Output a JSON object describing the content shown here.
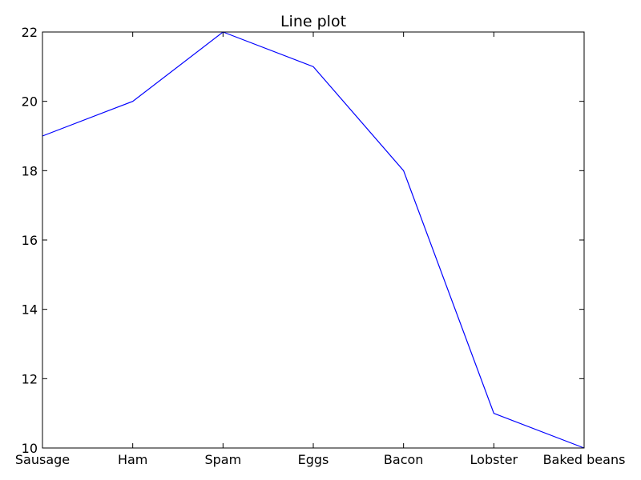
{
  "chart_data": {
    "type": "line",
    "title": "Line plot",
    "xlabel": "",
    "ylabel": "",
    "categories": [
      "Sausage",
      "Ham",
      "Spam",
      "Eggs",
      "Bacon",
      "Lobster",
      "Baked beans"
    ],
    "series": [
      {
        "values": [
          19,
          20,
          22,
          21,
          18,
          11,
          10
        ],
        "color": "#0000ff"
      }
    ],
    "ylim": [
      10,
      22
    ],
    "yticks": [
      10,
      12,
      14,
      16,
      18,
      20,
      22
    ],
    "ytick_labels": [
      "10",
      "12",
      "14",
      "16",
      "18",
      "20",
      "22"
    ],
    "grid": false,
    "legend": "none"
  }
}
